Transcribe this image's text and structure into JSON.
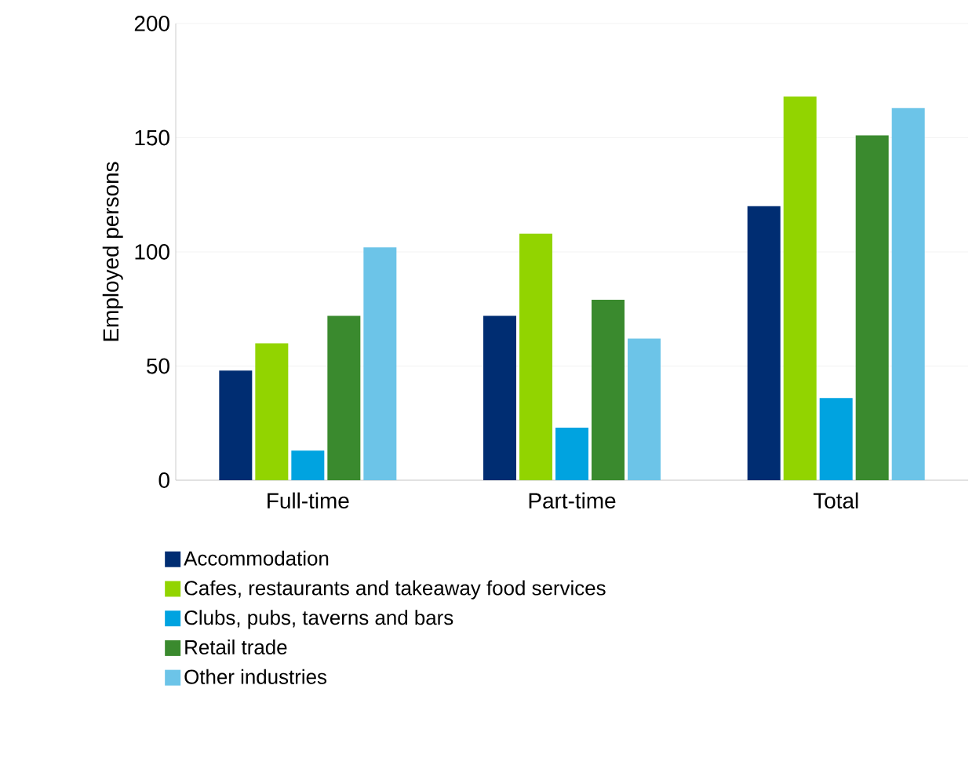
{
  "chart_data": {
    "type": "bar",
    "ylabel": "Employed persons",
    "categories": [
      "Full-time",
      "Part-time",
      "Total"
    ],
    "series": [
      {
        "name": "Accommodation",
        "color": "#002d72",
        "values": [
          48,
          72,
          120
        ]
      },
      {
        "name": "Cafes, restaurants and takeaway food services",
        "color": "#92d400",
        "values": [
          60,
          108,
          168
        ]
      },
      {
        "name": "Clubs, pubs, taverns and bars",
        "color": "#00a3e0",
        "values": [
          13,
          23,
          36
        ]
      },
      {
        "name": "Retail trade",
        "color": "#3a8a2e",
        "values": [
          72,
          79,
          151
        ]
      },
      {
        "name": "Other industries",
        "color": "#6cc4e8",
        "values": [
          102,
          62,
          163
        ]
      }
    ],
    "ylim": [
      0,
      200
    ],
    "yticks": [
      0,
      50,
      100,
      150,
      200
    ],
    "grid": "y",
    "legend": "bottom"
  }
}
